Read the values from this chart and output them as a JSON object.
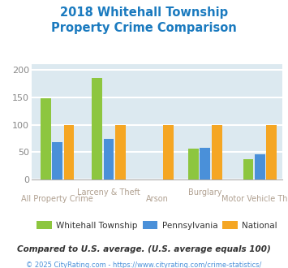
{
  "title": "2018 Whitehall Township\nProperty Crime Comparison",
  "title_color": "#1a7abf",
  "categories": [
    "All Property Crime",
    "Larceny & Theft",
    "Arson",
    "Burglary",
    "Motor Vehicle Theft"
  ],
  "cat_row": [
    1,
    0,
    1,
    0,
    1
  ],
  "series": {
    "Whitehall Township": [
      148,
      185,
      0,
      57,
      37
    ],
    "Pennsylvania": [
      68,
      74,
      0,
      58,
      46
    ],
    "National": [
      100,
      100,
      100,
      100,
      100
    ]
  },
  "colors": {
    "Whitehall Township": "#8dc63f",
    "Pennsylvania": "#4a90d9",
    "National": "#f5a623"
  },
  "ylim": [
    0,
    210
  ],
  "yticks": [
    0,
    50,
    100,
    150,
    200
  ],
  "plot_bg": "#dce9f0",
  "fig_bg": "#ffffff",
  "grid_color": "#ffffff",
  "xlabel_color": "#b0a090",
  "note_text": "Compared to U.S. average. (U.S. average equals 100)",
  "note_color": "#333333",
  "footer_text": "© 2025 CityRating.com - https://www.cityrating.com/crime-statistics/",
  "footer_color": "#4a90d9",
  "bar_width": 0.18
}
